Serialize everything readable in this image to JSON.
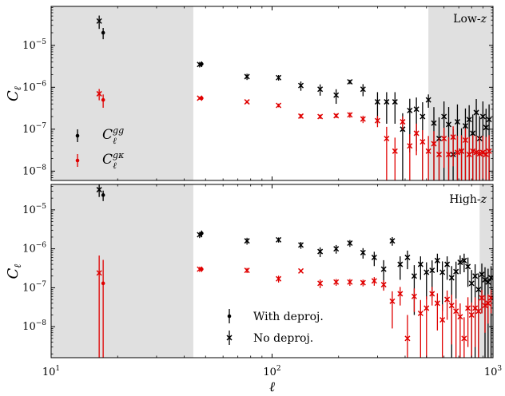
{
  "chart_data": {
    "type": "scatter",
    "xlabel": "ℓ",
    "xscale": "log",
    "xlim": [
      10,
      1000
    ],
    "x_ticks": [
      {
        "value": 10,
        "base": "10",
        "exp": "1"
      },
      {
        "value": 100,
        "base": "10",
        "exp": "2"
      },
      {
        "value": 1000,
        "base": "10",
        "exp": "3"
      }
    ],
    "shared_x": true,
    "panels": [
      {
        "name": "low-z",
        "title": "Low-z",
        "ylabel": "Cℓ",
        "yscale": "log",
        "ylim": [
          6e-09,
          8.5e-05
        ],
        "y_ticks": [
          {
            "value": 1e-08,
            "base": "10",
            "exp": "−8"
          },
          {
            "value": 1e-07,
            "base": "10",
            "exp": "−7"
          },
          {
            "value": 1e-06,
            "base": "10",
            "exp": "−6"
          },
          {
            "value": 1e-05,
            "base": "10",
            "exp": "−5"
          }
        ],
        "shaded_ell_ranges": [
          [
            10,
            44
          ],
          [
            510,
            1000
          ]
        ],
        "legend": {
          "position": "center-left",
          "entries": [
            {
              "key": "gg",
              "color": "#000000"
            },
            {
              "key": "gk",
              "color": "#e00000"
            }
          ]
        },
        "series": [
          {
            "name": "Cgg no deproj.",
            "color": "#000000",
            "marker": "x",
            "x": [
              16.5,
              47,
              77,
              107,
              135,
              165,
              195,
              225,
              258,
              300,
              330,
              360,
              390,
              420,
              450,
              480,
              510,
              540,
              570,
              600,
              630,
              660,
              690,
              720,
              750,
              780,
              810,
              840,
              870,
              900,
              930,
              960
            ],
            "y": [
              3.8e-05,
              3.5e-06,
              1.8e-06,
              1.7e-06,
              1.1e-06,
              9e-07,
              6.5e-07,
              1.35e-06,
              9e-07,
              4.5e-07,
              4.5e-07,
              4.5e-07,
              1e-07,
              2.8e-07,
              3e-07,
              2e-07,
              5e-07,
              1.4e-07,
              6e-08,
              2e-07,
              1.3e-07,
              2.5e-08,
              1.5e-07,
              3e-08,
              1.2e-07,
              1.7e-07,
              8e-08,
              2.5e-07,
              6e-08,
              2e-07,
              1.1e-07,
              1.7e-07
            ],
            "err_frac": [
              0.35,
              0.15,
              0.17,
              0.15,
              0.25,
              0.3,
              0.38,
              0.12,
              0.32,
              0.7,
              0.7,
              0.7,
              1.4,
              0.9,
              0.9,
              1.2,
              0.35,
              1.4,
              2.2,
              1.3,
              1.6,
              3,
              1.6,
              2.5,
              1.6,
              1.2,
              1.8,
              1.1,
              2.4,
              1.3,
              1.8,
              1.3
            ]
          },
          {
            "name": "Cgg with deproj.",
            "color": "#000000",
            "marker": "dot",
            "x": [
              17.2,
              48
            ],
            "y": [
              2e-05,
              3.6e-06
            ],
            "err_frac": [
              0.3,
              0.15
            ]
          },
          {
            "name": "Cgk no deproj.",
            "color": "#e00000",
            "marker": "x",
            "x": [
              16.5,
              47,
              77,
              107,
              135,
              165,
              195,
              225,
              258,
              300,
              330,
              360,
              390,
              420,
              450,
              480,
              510,
              540,
              570,
              600,
              630,
              660,
              690,
              720,
              750,
              780,
              810,
              840,
              870,
              900,
              930,
              960
            ],
            "y": [
              7e-07,
              5.5e-07,
              4.5e-07,
              3.7e-07,
              2.05e-07,
              2e-07,
              2.1e-07,
              2.2e-07,
              1.75e-07,
              1.6e-07,
              6e-08,
              3e-08,
              1.5e-07,
              4e-08,
              8e-08,
              5e-08,
              3e-08,
              4.5e-08,
              2.5e-08,
              6e-08,
              2.5e-08,
              6.5e-08,
              2.8e-08,
              3e-08,
              5.5e-08,
              2.5e-08,
              3e-08,
              2.8e-08,
              2.6e-08,
              2.8e-08,
              2.5e-08,
              3e-08
            ],
            "err_frac": [
              0.3,
              0.08,
              0.08,
              0.1,
              0.12,
              0.12,
              0.12,
              0.15,
              0.2,
              0.3,
              0.9,
              1.1,
              0.35,
              0.9,
              0.7,
              0.9,
              1.3,
              1,
              1.5,
              0.8,
              1.6,
              0.8,
              1.5,
              1.4,
              0.9,
              1.6,
              1.4,
              1.5,
              1.6,
              1.5,
              1.6,
              1.4
            ]
          },
          {
            "name": "Cgk with deproj.",
            "color": "#e00000",
            "marker": "dot",
            "x": [
              17.2,
              48
            ],
            "y": [
              5e-07,
              5.5e-07
            ],
            "err_frac": [
              0.35,
              0.08
            ]
          }
        ]
      },
      {
        "name": "high-z",
        "title": "High-z",
        "ylabel": "Cℓ",
        "yscale": "log",
        "ylim": [
          1.6e-09,
          4.5e-05
        ],
        "y_ticks": [
          {
            "value": 1e-08,
            "base": "10",
            "exp": "−8"
          },
          {
            "value": 1e-07,
            "base": "10",
            "exp": "−7"
          },
          {
            "value": 1e-06,
            "base": "10",
            "exp": "−6"
          },
          {
            "value": 1e-05,
            "base": "10",
            "exp": "−5"
          }
        ],
        "shaded_ell_ranges": [
          [
            10,
            44
          ],
          [
            870,
            1000
          ]
        ],
        "legend": {
          "position": "bottom-center",
          "entries": [
            {
              "label": "With deproj.",
              "marker": "dot"
            },
            {
              "label": "No deproj.",
              "marker": "x"
            }
          ]
        },
        "series": [
          {
            "name": "Cgg no deproj.",
            "color": "#000000",
            "marker": "x",
            "x": [
              16.5,
              47,
              77,
              107,
              135,
              165,
              195,
              225,
              258,
              290,
              320,
              350,
              380,
              410,
              440,
              470,
              500,
              530,
              560,
              590,
              620,
              650,
              680,
              710,
              740,
              770,
              800,
              830,
              860,
              890,
              920,
              950,
              980
            ],
            "y": [
              3.3e-05,
              2.3e-06,
              1.6e-06,
              1.7e-06,
              1.25e-06,
              8.5e-07,
              1e-06,
              1.4e-06,
              8e-07,
              6e-07,
              3e-07,
              1.6e-06,
              4e-07,
              6e-07,
              2e-07,
              4e-07,
              2.5e-07,
              2.8e-07,
              5e-07,
              2.5e-07,
              4e-07,
              1.8e-07,
              2.6e-07,
              4.5e-07,
              5e-07,
              3.5e-07,
              1.3e-07,
              2e-07,
              9e-08,
              2.2e-07,
              1.6e-07,
              1.4e-07,
              1.8e-07
            ],
            "err_frac": [
              0.35,
              0.18,
              0.2,
              0.15,
              0.2,
              0.28,
              0.25,
              0.2,
              0.3,
              0.4,
              0.7,
              0.25,
              0.6,
              0.5,
              0.9,
              0.6,
              0.8,
              0.8,
              0.5,
              0.9,
              0.6,
              1,
              0.8,
              0.5,
              0.5,
              0.7,
              1.2,
              1,
              1.6,
              0.9,
              1.1,
              1.2,
              1
            ]
          },
          {
            "name": "Cgg with deproj.",
            "color": "#000000",
            "marker": "dot",
            "x": [
              17.2,
              48
            ],
            "y": [
              2.4e-05,
              2.5e-06
            ],
            "err_frac": [
              0.3,
              0.18
            ]
          },
          {
            "name": "Cgk no deproj.",
            "color": "#e00000",
            "marker": "x",
            "x": [
              16.5,
              47,
              77,
              107,
              135,
              165,
              195,
              225,
              258,
              290,
              320,
              350,
              380,
              410,
              440,
              470,
              500,
              530,
              560,
              590,
              620,
              650,
              680,
              710,
              740,
              770,
              800,
              830,
              860,
              890,
              920,
              950,
              980
            ],
            "y": [
              2.4e-07,
              3e-07,
              2.8e-07,
              1.7e-07,
              2.7e-07,
              1.3e-07,
              1.4e-07,
              1.4e-07,
              1.35e-07,
              1.5e-07,
              1.2e-07,
              4.5e-08,
              7e-08,
              5e-09,
              6e-08,
              2.2e-08,
              3e-08,
              7e-08,
              4e-08,
              1.5e-08,
              5e-08,
              3.5e-08,
              2.5e-08,
              1.8e-08,
              5e-09,
              3e-08,
              2e-08,
              3e-08,
              2.5e-08,
              5.5e-08,
              3.5e-08,
              4e-08,
              5.5e-08
            ],
            "err_frac": [
              1.8,
              0.15,
              0.15,
              0.2,
              0.08,
              0.25,
              0.2,
              0.2,
              0.2,
              0.25,
              0.3,
              0.8,
              0.5,
              3,
              0.6,
              1.2,
              1,
              0.5,
              0.8,
              1.5,
              0.7,
              0.9,
              1,
              1.2,
              2.5,
              0.9,
              1.1,
              0.9,
              1,
              0.6,
              0.8,
              0.7,
              0.6
            ]
          },
          {
            "name": "Cgk with deproj.",
            "color": "#e00000",
            "marker": "dot",
            "x": [
              17.2,
              48
            ],
            "y": [
              1.3e-07,
              3e-07
            ],
            "err_frac": [
              3,
              0.15
            ]
          }
        ]
      }
    ]
  }
}
